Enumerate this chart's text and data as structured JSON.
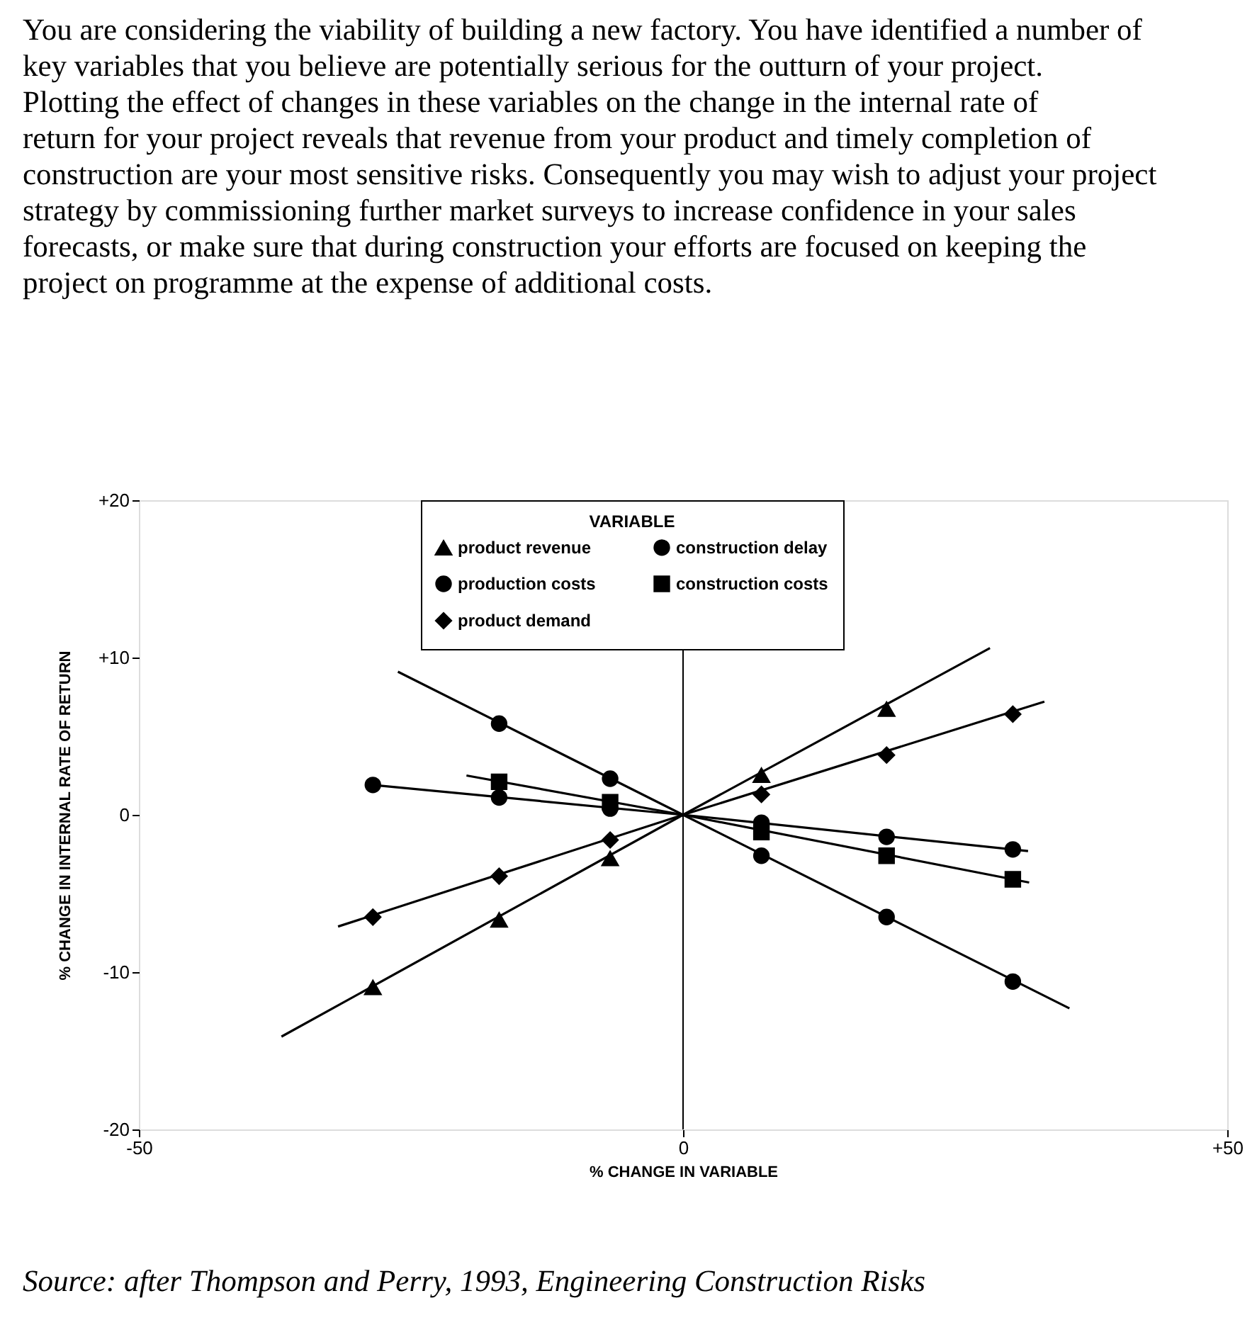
{
  "chart_data": {
    "type": "scatter",
    "xlabel": "% CHANGE IN VARIABLE",
    "ylabel": "% CHANGE IN INTERNAL RATE OF RETURN",
    "legend_title": "VARIABLE",
    "x": [
      -28.5,
      -16.9,
      -6.7,
      7.2,
      18.7,
      30.3
    ],
    "series": [
      {
        "name": "product revenue",
        "color": "#000000",
        "marker": "triangle",
        "values": [
          -11.0,
          -6.7,
          -2.8,
          2.5,
          6.7,
          null
        ]
      },
      {
        "name": "construction delay",
        "color": "#000000",
        "marker": "circle",
        "values": [
          null,
          5.8,
          2.3,
          -2.6,
          -6.5,
          -10.6
        ]
      },
      {
        "name": "production costs",
        "color": "#000000",
        "marker": "circle",
        "values": [
          1.9,
          1.1,
          0.4,
          -0.5,
          -1.4,
          -2.2
        ]
      },
      {
        "name": "construction costs",
        "color": "#000000",
        "marker": "square",
        "values": [
          null,
          2.1,
          0.8,
          -1.1,
          -2.6,
          -4.1
        ]
      },
      {
        "name": "product demand",
        "color": "#000000",
        "marker": "diamond",
        "values": [
          -6.5,
          -3.9,
          -1.6,
          1.3,
          3.8,
          6.4
        ]
      },
      {
        "type": "line",
        "color": "#000000",
        "marker": "none",
        "line_style": "solid",
        "x": [
          -36.9,
          0,
          28.2
        ],
        "values": [
          -14.1,
          0,
          10.6
        ]
      },
      {
        "type": "line",
        "color": "#000000",
        "marker": "none",
        "line_style": "solid",
        "x": [
          -26.2,
          0,
          35.5
        ],
        "values": [
          9.1,
          0,
          -12.3
        ]
      },
      {
        "type": "line",
        "color": "#000000",
        "marker": "none",
        "line_style": "solid",
        "x": [
          -28.5,
          0,
          31.7
        ],
        "values": [
          1.9,
          0,
          -2.3
        ]
      },
      {
        "type": "line",
        "color": "#000000",
        "marker": "none",
        "line_style": "solid",
        "x": [
          -19.9,
          0,
          31.8
        ],
        "values": [
          2.5,
          0,
          -4.3
        ]
      },
      {
        "type": "line",
        "color": "#000000",
        "marker": "none",
        "line_style": "solid",
        "x": [
          -31.7,
          0,
          33.2
        ],
        "values": [
          -7.1,
          0,
          7.2
        ]
      }
    ],
    "xlim": [
      -50,
      50
    ],
    "xticks": [
      -50,
      0,
      {
        "value": 50,
        "label": "+50"
      }
    ],
    "ylim": [
      -20,
      20
    ],
    "yticks": [
      -20,
      -10,
      0,
      {
        "value": 10,
        "label": "+10"
      },
      {
        "value": 20,
        "label": "+20"
      }
    ],
    "ref_lines": [
      {
        "axis": "x",
        "value": 0,
        "color": "#000000"
      }
    ],
    "grid": false,
    "legend": "top",
    "annotations": [
      "You are considering the viability of building a new factory. You have identified a number of key variables that you believe are potentially serious for the outturn of your project. Plotting the effect of changes in these variables on the change in the internal rate of return for your project reveals that revenue from your product and timely completion of construction are your most sensitive risks. Consequently you may wish to adjust your project strategy by commissioning further market surveys to increase confidence in your sales forecasts, or make sure that during construction your efforts are focused on keeping the project on programme at the expense of additional costs.",
      "Source: after Thompson and Perry, 1993, Engineering Construction Risks"
    ]
  }
}
